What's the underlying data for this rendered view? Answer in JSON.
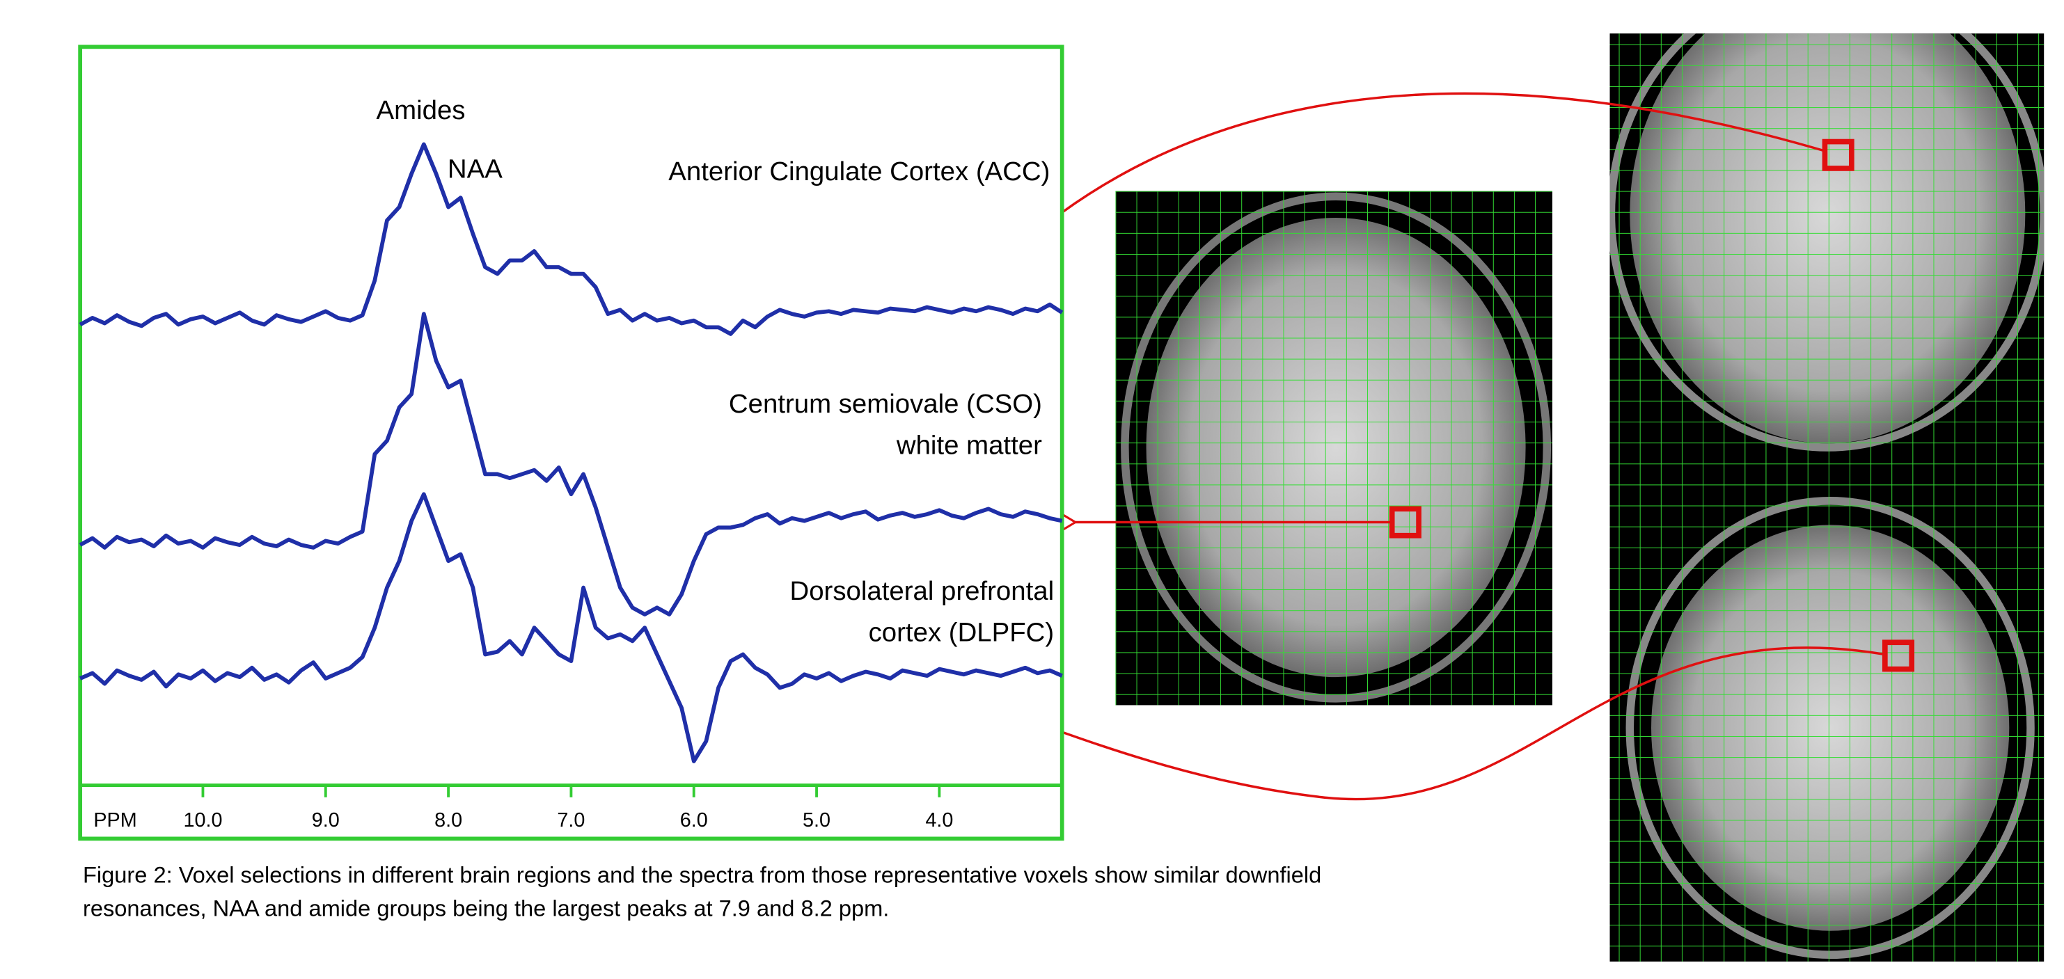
{
  "chart_data": {
    "type": "line",
    "x_label": "PPM",
    "xlim": [
      11.0,
      3.0
    ],
    "ylim": [
      0,
      553
    ],
    "xticks": [
      {
        "value": 10,
        "label": "10.0"
      },
      {
        "value": 9,
        "label": "9.0"
      },
      {
        "value": 8,
        "label": "8.0"
      },
      {
        "value": 7,
        "label": "7.0"
      },
      {
        "value": 6,
        "label": "6.0"
      },
      {
        "value": 5,
        "label": "5.0"
      },
      {
        "value": 4,
        "label": "4.0"
      }
    ],
    "frame_color": "#33cc33",
    "annotations": [
      "Amides",
      "NAA",
      "Anterior Cingulate Cortex (ACC)",
      "Centrum semiovale (CSO)",
      "white matter",
      "Dorsolateral prefrontal",
      "cortex (DLPFC)"
    ],
    "x": [
      11,
      10.9,
      10.8,
      10.7,
      10.6,
      10.5,
      10.4,
      10.3,
      10.2,
      10.1,
      10,
      9.9,
      9.8,
      9.7,
      9.6,
      9.5,
      9.4,
      9.3,
      9.2,
      9.1,
      9,
      8.9,
      8.8,
      8.7,
      8.6,
      8.5,
      8.4,
      8.3,
      8.2,
      8.1,
      8,
      7.9,
      7.8,
      7.7,
      7.6,
      7.5,
      7.4,
      7.3,
      7.2,
      7.1,
      7,
      6.9,
      6.8,
      6.7,
      6.6,
      6.5,
      6.4,
      6.3,
      6.2,
      6.1,
      6,
      5.9,
      5.8,
      5.7,
      5.6,
      5.5,
      5.4,
      5.3,
      5.2,
      5.1,
      5,
      4.9,
      4.8,
      4.7,
      4.6,
      4.5,
      4.4,
      4.3,
      4.2,
      4.1,
      4,
      3.9,
      3.8,
      3.7,
      3.6,
      3.5,
      3.4,
      3.3,
      3.2,
      3.1,
      3
    ],
    "series": [
      {
        "color": "#1f2fa8",
        "values": [
          345,
          350,
          346,
          352,
          347,
          344,
          350,
          353,
          345,
          349,
          351,
          346,
          350,
          354,
          348,
          345,
          352,
          349,
          347,
          351,
          355,
          350,
          348,
          352,
          378,
          423,
          433,
          458,
          480,
          458,
          433,
          440,
          413,
          388,
          383,
          393,
          393,
          400,
          388,
          388,
          383,
          383,
          373,
          353,
          356,
          348,
          353,
          348,
          350,
          346,
          348,
          343,
          343,
          338,
          348,
          343,
          351,
          356,
          353,
          351,
          354,
          355,
          353,
          356,
          355,
          354,
          357,
          356,
          355,
          358,
          356,
          354,
          357,
          355,
          358,
          356,
          353,
          357,
          355,
          360,
          354
        ]
      },
      {
        "color": "#1f2fa8",
        "values": [
          180,
          185,
          178,
          186,
          182,
          184,
          179,
          187,
          181,
          183,
          178,
          185,
          182,
          180,
          186,
          181,
          179,
          184,
          180,
          178,
          183,
          181,
          186,
          190,
          248,
          258,
          283,
          293,
          353,
          318,
          298,
          303,
          268,
          233,
          233,
          230,
          233,
          236,
          228,
          238,
          218,
          233,
          208,
          178,
          148,
          133,
          128,
          133,
          128,
          143,
          168,
          188,
          193,
          193,
          195,
          200,
          203,
          196,
          200,
          198,
          201,
          204,
          200,
          203,
          205,
          199,
          202,
          204,
          201,
          203,
          206,
          202,
          200,
          204,
          207,
          203,
          201,
          205,
          203,
          200,
          198
        ]
      },
      {
        "color": "#1f2fa8",
        "values": [
          80,
          84,
          76,
          86,
          82,
          79,
          85,
          74,
          83,
          80,
          86,
          78,
          84,
          81,
          88,
          79,
          83,
          77,
          86,
          92,
          80,
          84,
          88,
          96,
          118,
          148,
          168,
          198,
          218,
          193,
          168,
          173,
          148,
          98,
          100,
          108,
          98,
          118,
          108,
          98,
          93,
          148,
          118,
          110,
          113,
          108,
          118,
          98,
          78,
          58,
          18,
          33,
          73,
          93,
          98,
          88,
          83,
          73,
          76,
          83,
          80,
          84,
          78,
          82,
          85,
          83,
          80,
          86,
          84,
          82,
          87,
          85,
          83,
          86,
          84,
          82,
          85,
          88,
          84,
          86,
          82
        ]
      }
    ]
  },
  "caption": [
    "Figure 2: Voxel selections in different brain regions and the spectra from those representative voxels show similar downfield",
    "resonances, NAA and amide groups being the largest peaks at 7.9 and 8.2 ppm."
  ]
}
